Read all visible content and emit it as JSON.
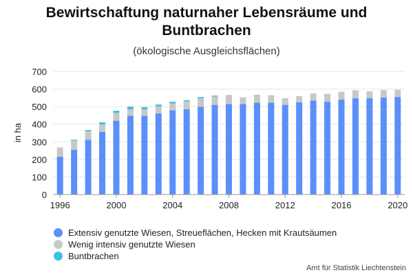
{
  "chart_data": {
    "type": "bar",
    "stacked": true,
    "title": "Bewirtschaftung naturnaher Lebensräume und Buntbrachen",
    "subtitle": "(ökologische Ausgleichsflächen)",
    "ylabel": "in ha",
    "xlabel": "",
    "ylim": [
      0,
      700
    ],
    "yticks": [
      0,
      100,
      200,
      300,
      400,
      500,
      600,
      700
    ],
    "xticks": [
      "1996",
      "2000",
      "2004",
      "2008",
      "2012",
      "2016",
      "2020"
    ],
    "grid": true,
    "legend": "bottom-left",
    "categories": [
      "1996",
      "1997",
      "1998",
      "1999",
      "2000",
      "2001",
      "2002",
      "2003",
      "2004",
      "2005",
      "2006",
      "2007",
      "2008",
      "2009",
      "2010",
      "2011",
      "2012",
      "2013",
      "2014",
      "2015",
      "2016",
      "2017",
      "2018",
      "2019",
      "2020"
    ],
    "series": [
      {
        "name": "Extensiv genutzte Wiesen, Streueflächen, Hecken mit Krautsäumen",
        "color": "#5b8ff9",
        "values": [
          215,
          255,
          312,
          357,
          420,
          448,
          448,
          462,
          480,
          485,
          500,
          510,
          515,
          515,
          523,
          523,
          510,
          525,
          535,
          528,
          540,
          548,
          548,
          552,
          555
        ]
      },
      {
        "name": "Wenig intensiv genutzte Wiesen",
        "color": "#c8c8c8",
        "values": [
          53,
          52,
          48,
          42,
          45,
          37,
          37,
          40,
          38,
          45,
          48,
          48,
          47,
          38,
          45,
          42,
          38,
          35,
          40,
          45,
          45,
          45,
          40,
          42,
          42
        ]
      },
      {
        "name": "Buntbrachen",
        "color": "#3ec0e8",
        "values": [
          0,
          5,
          7,
          12,
          12,
          15,
          12,
          10,
          10,
          7,
          7,
          5,
          3,
          0,
          0,
          0,
          0,
          0,
          0,
          0,
          0,
          0,
          0,
          0,
          0
        ]
      }
    ]
  },
  "credits": "Amt für Statistik Liechtenstein"
}
